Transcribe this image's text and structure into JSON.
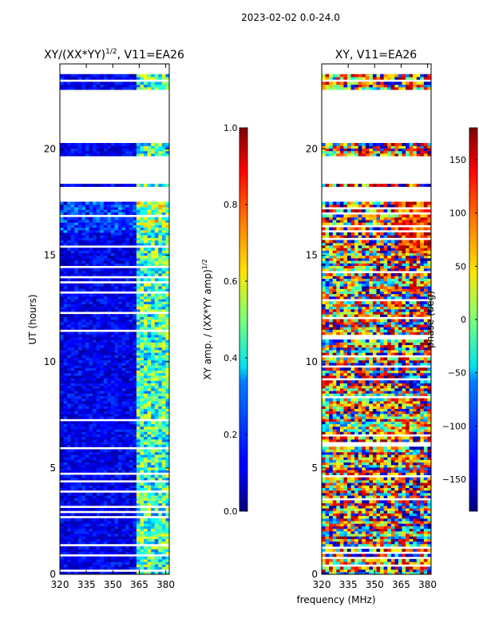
{
  "figure": {
    "suptitle": "2023-02-02 0.0-24.0",
    "xlabel": "frequency (MHz)"
  },
  "colors": {
    "missing": "#ffffff",
    "frame": "#000000"
  },
  "chart_data": [
    {
      "type": "heatmap",
      "panel": "left",
      "title_main": "XY/(XX*YY)",
      "title_exp": "1/2",
      "title_suffix": ", V11=EA26",
      "xlabel": "",
      "ylabel": "UT (hours)",
      "xlim": [
        320,
        382
      ],
      "ylim": [
        0,
        24
      ],
      "xticks": [
        "320",
        "335",
        "350",
        "365",
        "380"
      ],
      "yticks": [
        "0",
        "5",
        "10",
        "15",
        "20"
      ],
      "empty_ut_ranges": [
        [
          17.55,
          18.2
        ],
        [
          18.32,
          19.65
        ],
        [
          20.25,
          22.75
        ],
        [
          23.15,
          23.3
        ],
        [
          23.55,
          24.0
        ]
      ],
      "quantity": "normalized XY amplitude",
      "colorbar": {
        "colormap": "jet",
        "label_main": "XY amp. / (XX*YY amp)",
        "label_exp": "1/2",
        "range": [
          0.0,
          1.0
        ],
        "ticks": [
          "0.0",
          "0.2",
          "0.4",
          "0.6",
          "0.8",
          "1.0"
        ]
      }
    },
    {
      "type": "heatmap",
      "panel": "right",
      "title_main": "XY, V11=EA26",
      "xlabel": "",
      "ylabel": "",
      "xlim": [
        320,
        382
      ],
      "ylim": [
        0,
        24
      ],
      "xticks": [
        "320",
        "335",
        "350",
        "365",
        "380"
      ],
      "yticks": [
        "0",
        "5",
        "10",
        "15",
        "20"
      ],
      "empty_ut_ranges": [
        [
          17.55,
          18.2
        ],
        [
          18.32,
          19.65
        ],
        [
          20.25,
          22.75
        ],
        [
          23.15,
          23.3
        ],
        [
          23.55,
          24.0
        ]
      ],
      "quantity": "XY phase",
      "colorbar": {
        "colormap": "jet",
        "label_main": "phase (deg)",
        "range": [
          -180,
          180
        ],
        "ticks": [
          "−150",
          "−100",
          "−50",
          "0",
          "50",
          "100",
          "150"
        ]
      }
    }
  ]
}
